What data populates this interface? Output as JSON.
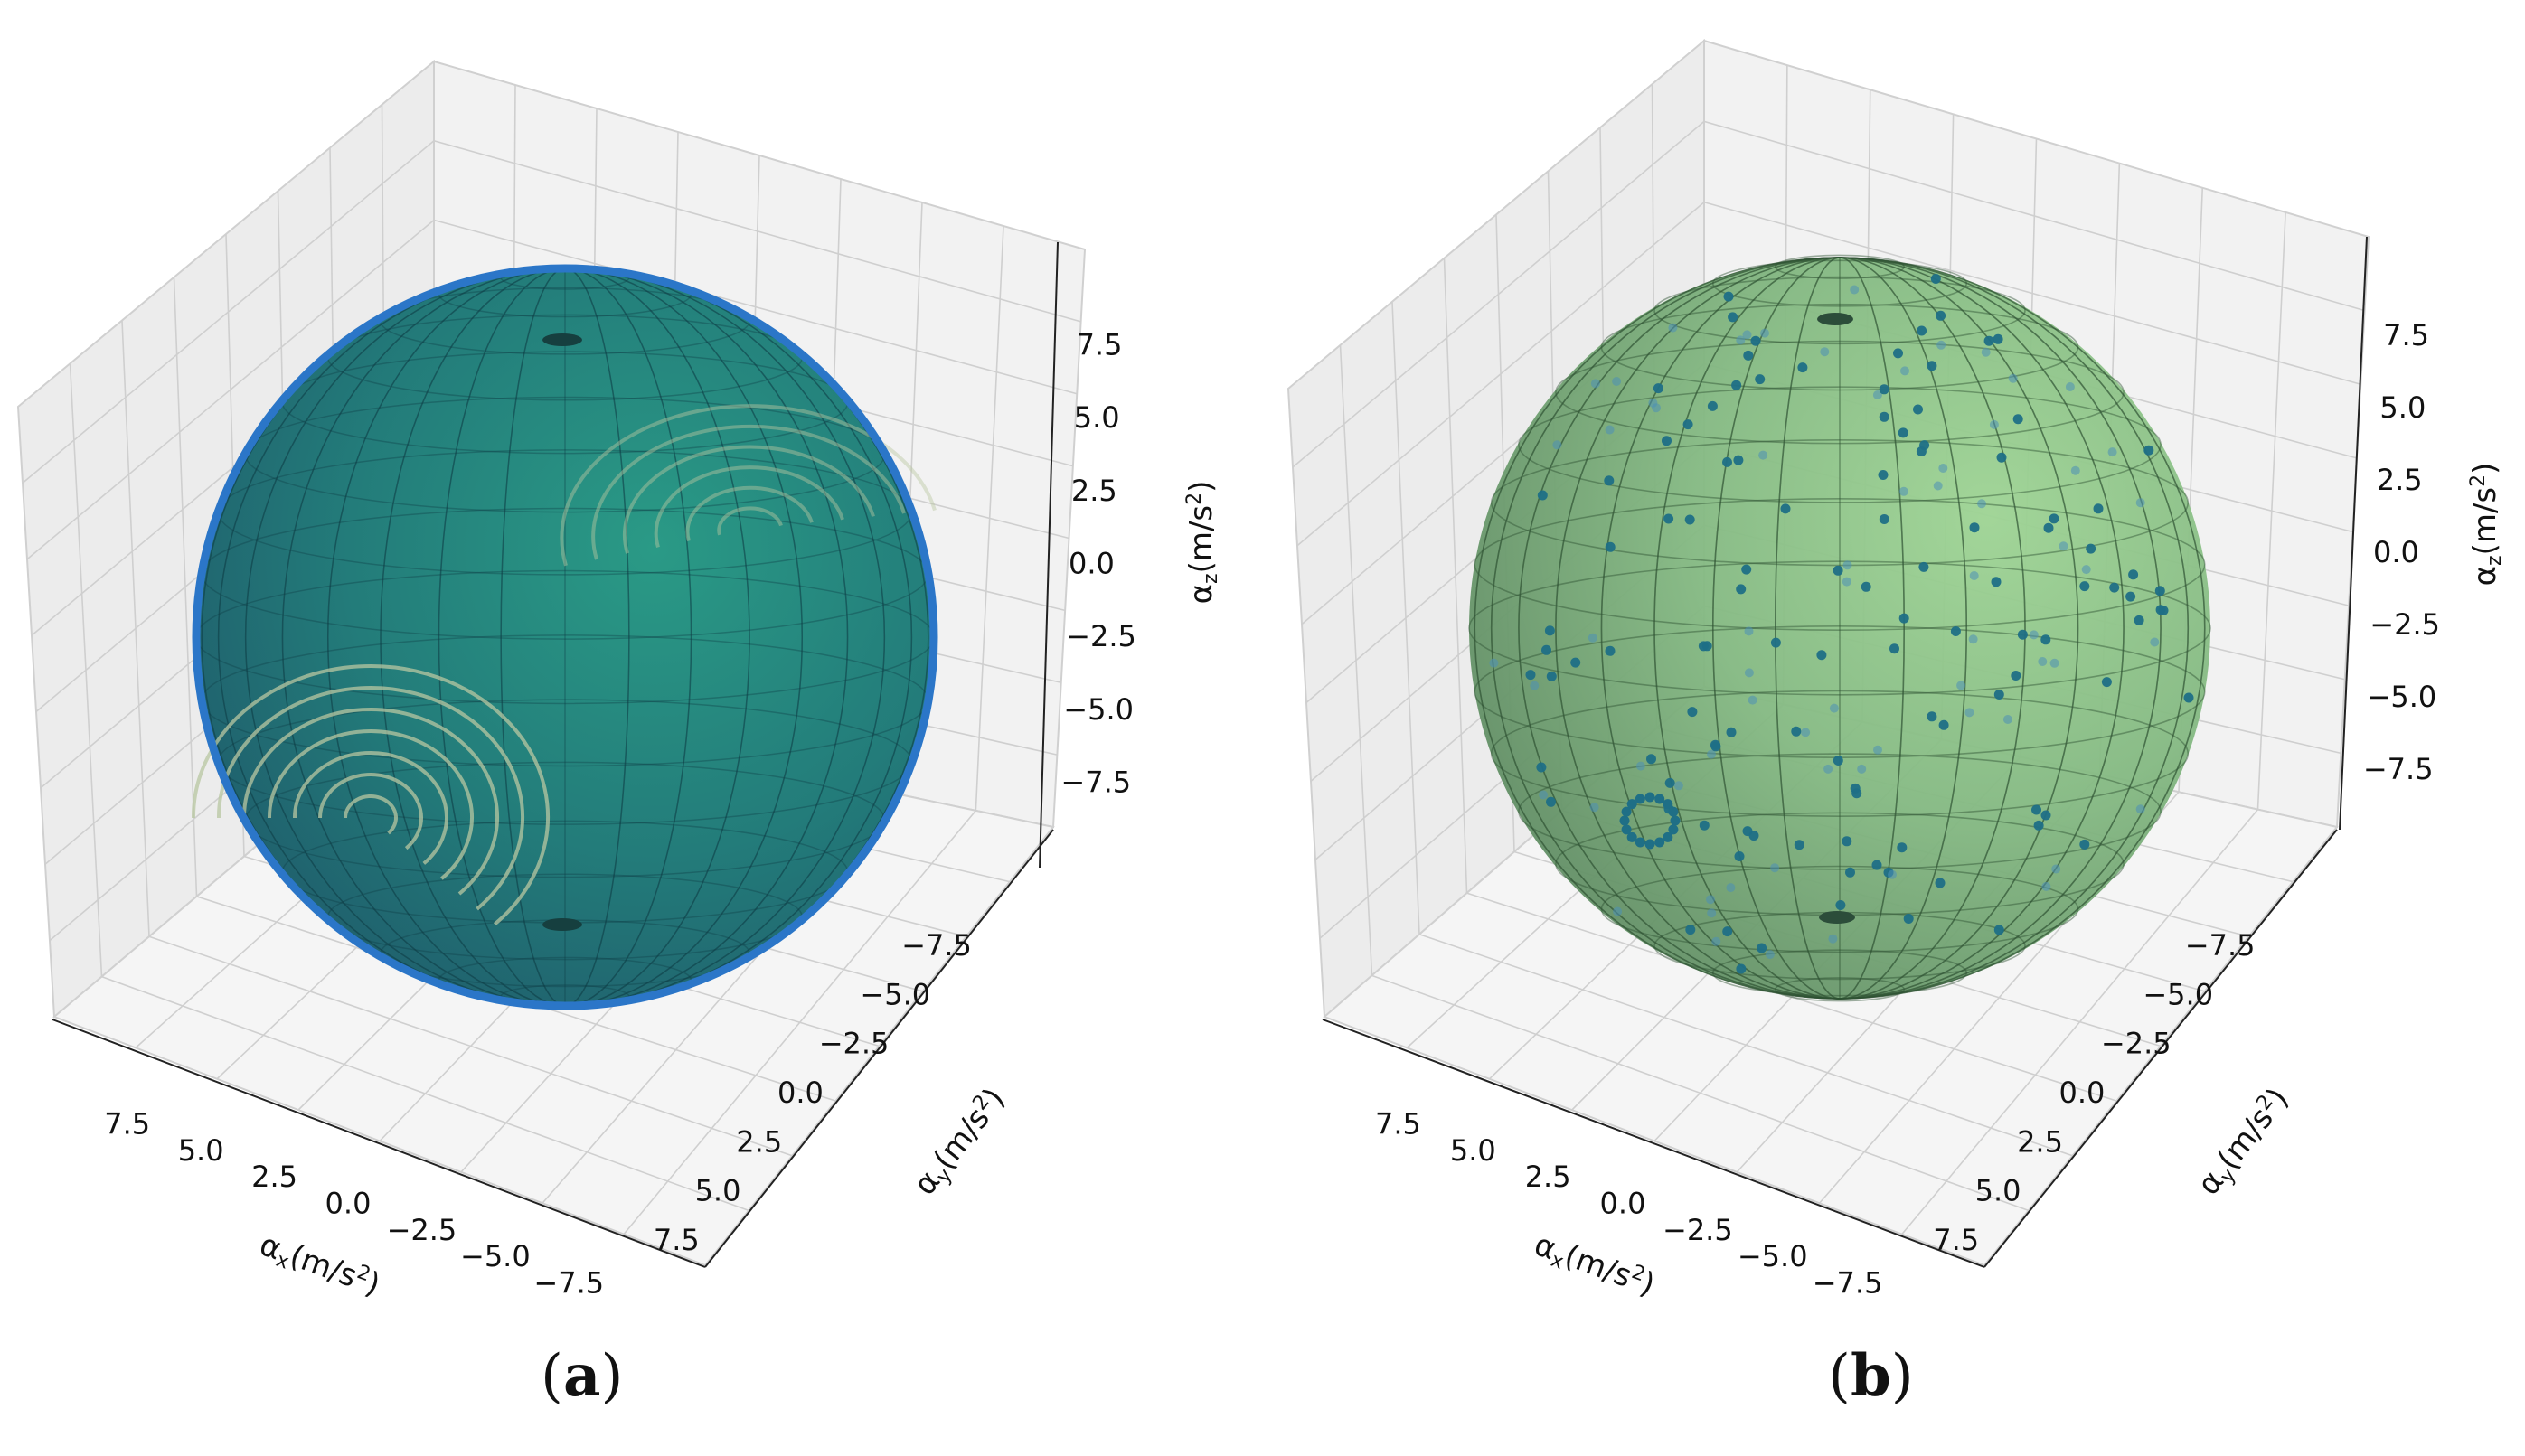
{
  "panels": [
    {
      "caption_open": "(",
      "caption_letter": "a",
      "caption_close": ")",
      "sphere_fill": "#237c7a",
      "point_color": "#2b76c8"
    },
    {
      "caption_open": "(",
      "caption_letter": "b",
      "caption_close": ")",
      "sphere_fill": "#7fb77e",
      "point_color": "#1f6f86"
    }
  ],
  "chart_data": [
    {
      "type": "scatter",
      "projection": "3d",
      "subplot": "a",
      "surface": "sphere",
      "radius": 9.8,
      "xlabel": "α_x(m/s²)",
      "ylabel": "α_y(m/s²)",
      "zlabel": "α_z(m/s²)",
      "xlim": [
        -9.8,
        9.8
      ],
      "ylim": [
        -9.8,
        9.8
      ],
      "zlim": [
        -9.8,
        9.8
      ],
      "xticks": [
        "7.5",
        "5.0",
        "2.5",
        "0.0",
        "−2.5",
        "−5.0",
        "−7.5"
      ],
      "yticks": [
        "−7.5",
        "−5.0",
        "−2.5",
        "0.0",
        "2.5",
        "5.0",
        "7.5"
      ],
      "zticks": [
        "7.5",
        "5.0",
        "2.5",
        "0.0",
        "−2.5",
        "−5.0",
        "−7.5"
      ],
      "grid": true,
      "description": "dense uniform sampling of points covering the sphere surface"
    },
    {
      "type": "scatter",
      "projection": "3d",
      "subplot": "b",
      "surface": "sphere",
      "radius": 9.8,
      "xlabel": "α_x(m/s²)",
      "ylabel": "α_y(m/s²)",
      "zlabel": "α_z(m/s²)",
      "xlim": [
        -9.8,
        9.8
      ],
      "ylim": [
        -9.8,
        9.8
      ],
      "zlim": [
        -9.8,
        9.8
      ],
      "xticks": [
        "7.5",
        "5.0",
        "2.5",
        "0.0",
        "−2.5",
        "−5.0",
        "−7.5"
      ],
      "yticks": [
        "−7.5",
        "−5.0",
        "−2.5",
        "0.0",
        "2.5",
        "5.0",
        "7.5"
      ],
      "zticks": [
        "7.5",
        "5.0",
        "2.5",
        "0.0",
        "−2.5",
        "−5.0",
        "−7.5"
      ],
      "grid": true,
      "description": "sparse set of sampled points on a translucent sphere, including a small ring cluster"
    }
  ]
}
